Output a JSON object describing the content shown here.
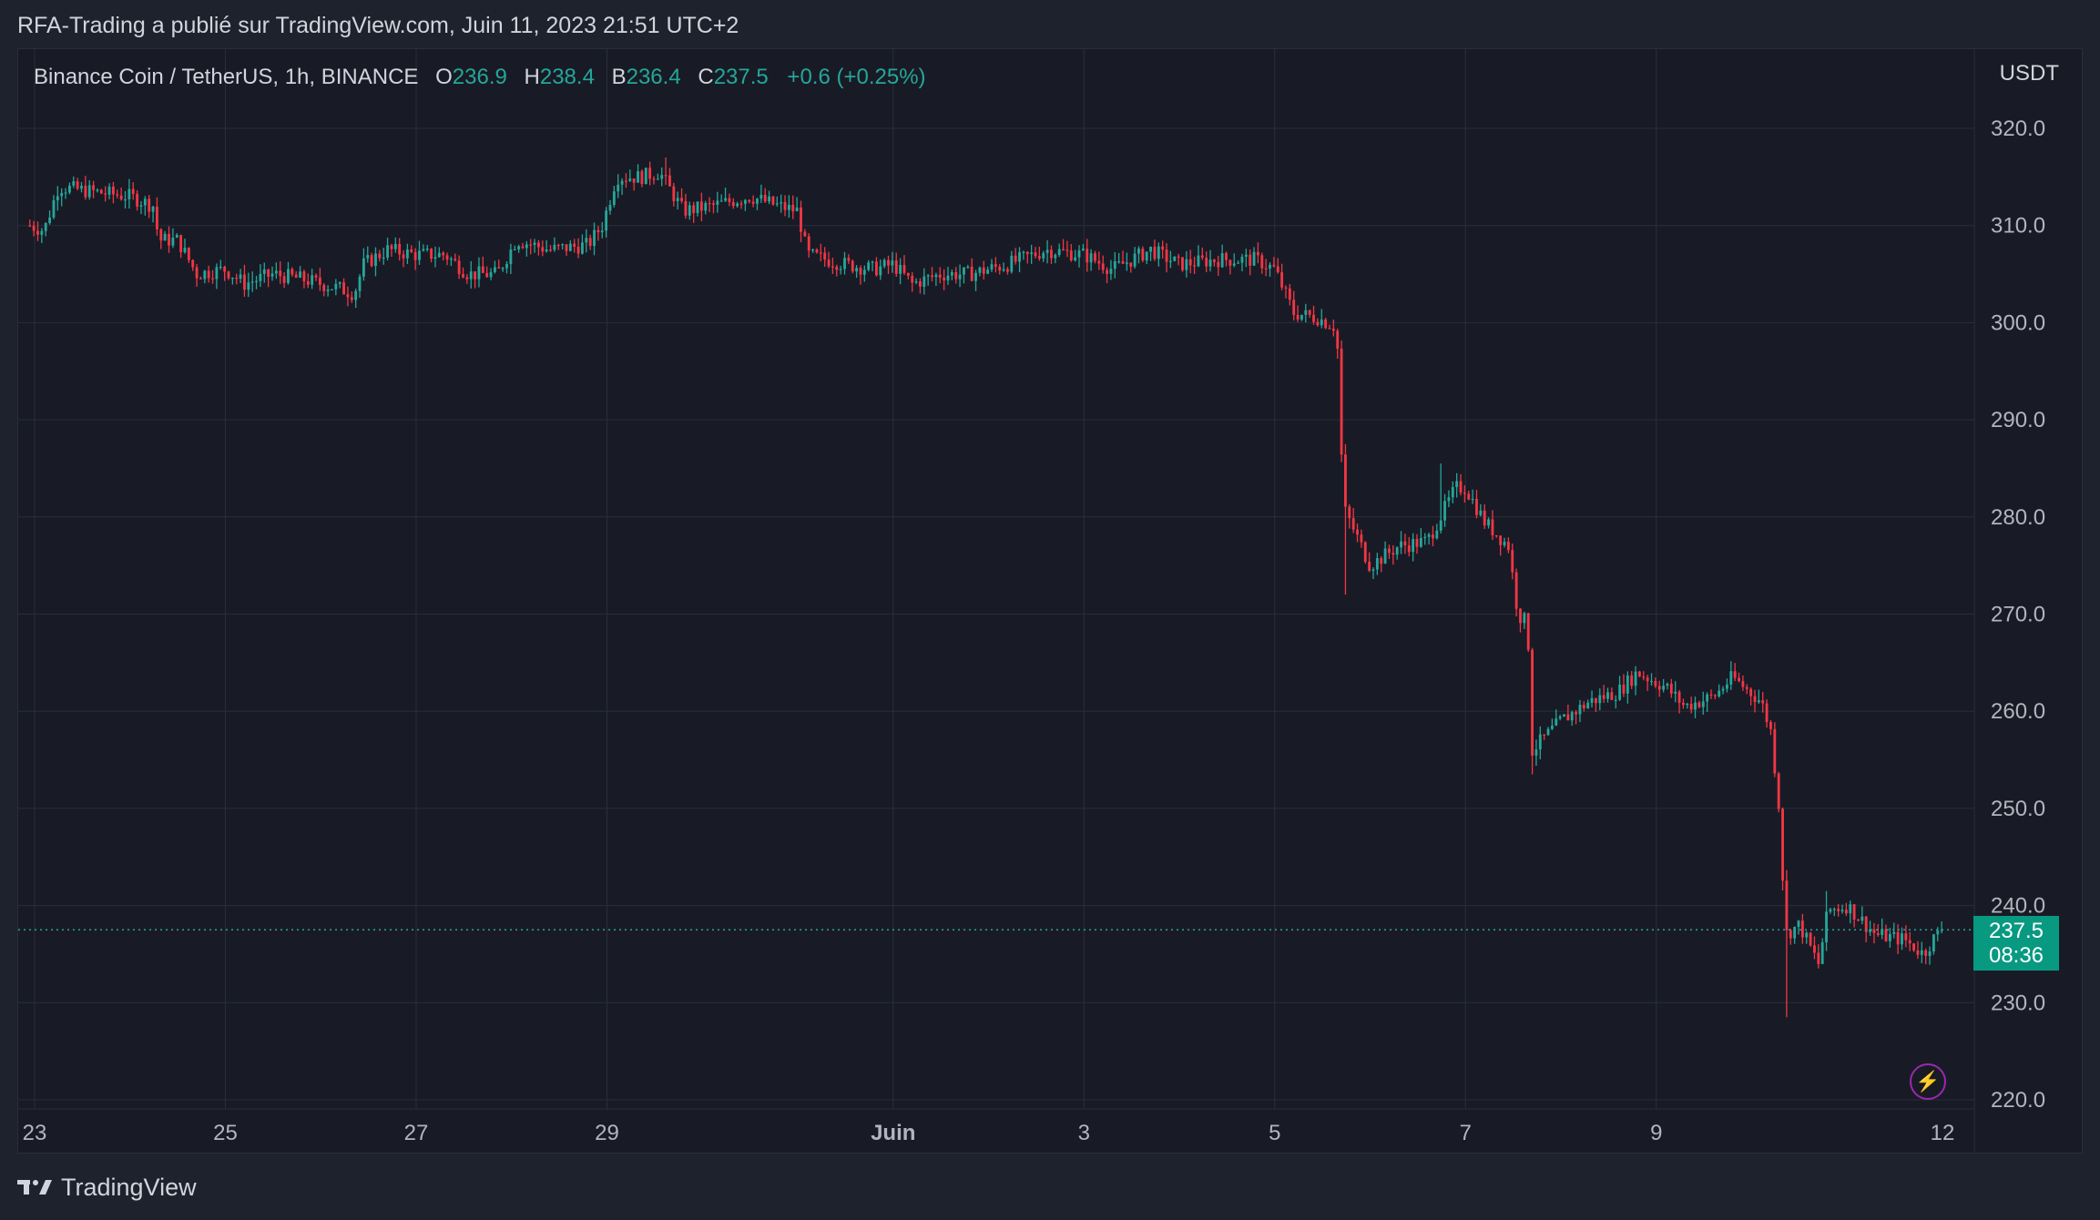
{
  "header": {
    "attribution": "RFA-Trading a publié sur TradingView.com, Juin 11, 2023 21:51 UTC+2"
  },
  "legend": {
    "symbol": "Binance Coin / TetherUS, 1h, BINANCE",
    "o_label": "O",
    "o_value": "236.9",
    "h_label": "H",
    "h_value": "238.4",
    "b_label": "B",
    "b_value": "236.4",
    "c_label": "C",
    "c_value": "237.5",
    "change": "+0.6 (+0.25%)"
  },
  "price_axis": {
    "currency": "USDT"
  },
  "last_price": {
    "price": "237.5",
    "countdown": "08:36"
  },
  "footer": {
    "brand": "TradingView"
  },
  "colors": {
    "up": "#26a69a",
    "down": "#f23645",
    "grid": "#2a2e39",
    "background": "#181b25",
    "last_price_bg": "#089981"
  },
  "chart_data": {
    "type": "candlestick",
    "symbol": "Binance Coin / TetherUS",
    "interval": "1h",
    "exchange": "BINANCE",
    "ylim": [
      220,
      320
    ],
    "yticks": [
      "320.0",
      "310.0",
      "300.0",
      "290.0",
      "280.0",
      "270.0",
      "260.0",
      "250.0",
      "240.0",
      "230.0",
      "220.0"
    ],
    "xlim_days": [
      22.95,
      33.05
    ],
    "xticks": [
      {
        "label": "23",
        "day": 23
      },
      {
        "label": "25",
        "day": 25
      },
      {
        "label": "27",
        "day": 27
      },
      {
        "label": "29",
        "day": 29
      },
      {
        "label": "Juin",
        "day": 32,
        "bold": true
      },
      {
        "label": "3",
        "day": 34
      },
      {
        "label": "5",
        "day": 36
      },
      {
        "label": "7",
        "day": 38
      },
      {
        "label": "9",
        "day": 40
      },
      {
        "label": "12",
        "day": 43
      }
    ],
    "last_close": 237.5,
    "waypoints": [
      {
        "day": 22.95,
        "price": 310.0
      },
      {
        "day": 23.1,
        "price": 309.5
      },
      {
        "day": 23.25,
        "price": 314.0
      },
      {
        "day": 23.6,
        "price": 313.5
      },
      {
        "day": 24.0,
        "price": 313.0
      },
      {
        "day": 24.25,
        "price": 312.0
      },
      {
        "day": 24.3,
        "price": 308.5
      },
      {
        "day": 24.5,
        "price": 308.5
      },
      {
        "day": 24.7,
        "price": 305.0
      },
      {
        "day": 25.0,
        "price": 305.5
      },
      {
        "day": 25.2,
        "price": 304.0
      },
      {
        "day": 25.5,
        "price": 305.0
      },
      {
        "day": 25.8,
        "price": 304.5
      },
      {
        "day": 26.2,
        "price": 303.5
      },
      {
        "day": 26.35,
        "price": 303.0
      },
      {
        "day": 26.45,
        "price": 306.0
      },
      {
        "day": 26.7,
        "price": 307.5
      },
      {
        "day": 27.0,
        "price": 307.0
      },
      {
        "day": 27.3,
        "price": 307.0
      },
      {
        "day": 27.55,
        "price": 305.0
      },
      {
        "day": 27.85,
        "price": 305.0
      },
      {
        "day": 28.05,
        "price": 308.5
      },
      {
        "day": 28.4,
        "price": 307.5
      },
      {
        "day": 28.8,
        "price": 308.0
      },
      {
        "day": 28.95,
        "price": 310.0
      },
      {
        "day": 29.1,
        "price": 315.0
      },
      {
        "day": 29.35,
        "price": 315.0
      },
      {
        "day": 29.55,
        "price": 315.5
      },
      {
        "day": 29.8,
        "price": 311.5
      },
      {
        "day": 30.1,
        "price": 312.0
      },
      {
        "day": 30.5,
        "price": 313.0
      },
      {
        "day": 30.8,
        "price": 312.0
      },
      {
        "day": 31.0,
        "price": 311.5
      },
      {
        "day": 31.1,
        "price": 307.0
      },
      {
        "day": 31.5,
        "price": 306.0
      },
      {
        "day": 31.8,
        "price": 305.5
      },
      {
        "day": 32.0,
        "price": 306.0
      },
      {
        "day": 32.2,
        "price": 304.0
      },
      {
        "day": 32.5,
        "price": 305.0
      },
      {
        "day": 32.8,
        "price": 305.0
      },
      {
        "day": 33.2,
        "price": 306.0
      },
      {
        "day": 33.6,
        "price": 307.5
      },
      {
        "day": 34.0,
        "price": 307.0
      },
      {
        "day": 34.3,
        "price": 305.5
      },
      {
        "day": 34.7,
        "price": 307.5
      },
      {
        "day": 35.0,
        "price": 306.0
      },
      {
        "day": 35.4,
        "price": 306.5
      },
      {
        "day": 35.8,
        "price": 306.5
      },
      {
        "day": 36.0,
        "price": 305.5
      },
      {
        "day": 36.2,
        "price": 301.0
      },
      {
        "day": 36.45,
        "price": 300.5
      },
      {
        "day": 36.65,
        "price": 299.5
      },
      {
        "day": 36.72,
        "price": 281.0
      },
      {
        "day": 37.0,
        "price": 275.0
      },
      {
        "day": 37.3,
        "price": 277.0
      },
      {
        "day": 37.6,
        "price": 277.5
      },
      {
        "day": 37.9,
        "price": 283.0
      },
      {
        "day": 38.0,
        "price": 283.0
      },
      {
        "day": 38.2,
        "price": 279.5
      },
      {
        "day": 38.45,
        "price": 277.0
      },
      {
        "day": 38.55,
        "price": 270.0
      },
      {
        "day": 38.65,
        "price": 269.0
      },
      {
        "day": 38.7,
        "price": 256.0
      },
      {
        "day": 39.0,
        "price": 259.0
      },
      {
        "day": 39.3,
        "price": 261.0
      },
      {
        "day": 39.6,
        "price": 262.0
      },
      {
        "day": 39.8,
        "price": 264.0
      },
      {
        "day": 40.1,
        "price": 262.5
      },
      {
        "day": 40.3,
        "price": 260.5
      },
      {
        "day": 40.6,
        "price": 261.5
      },
      {
        "day": 40.8,
        "price": 263.5
      },
      {
        "day": 41.1,
        "price": 261.0
      },
      {
        "day": 41.2,
        "price": 258.0
      },
      {
        "day": 41.3,
        "price": 249.0
      },
      {
        "day": 41.35,
        "price": 237.0
      },
      {
        "day": 41.5,
        "price": 238.0
      },
      {
        "day": 41.7,
        "price": 234.0
      },
      {
        "day": 41.8,
        "price": 239.5
      },
      {
        "day": 42.0,
        "price": 240.0
      },
      {
        "day": 42.3,
        "price": 237.0
      },
      {
        "day": 42.6,
        "price": 236.5
      },
      {
        "day": 42.8,
        "price": 235.0
      },
      {
        "day": 42.9,
        "price": 236.5
      },
      {
        "day": 43.0,
        "price": 237.5
      }
    ]
  }
}
